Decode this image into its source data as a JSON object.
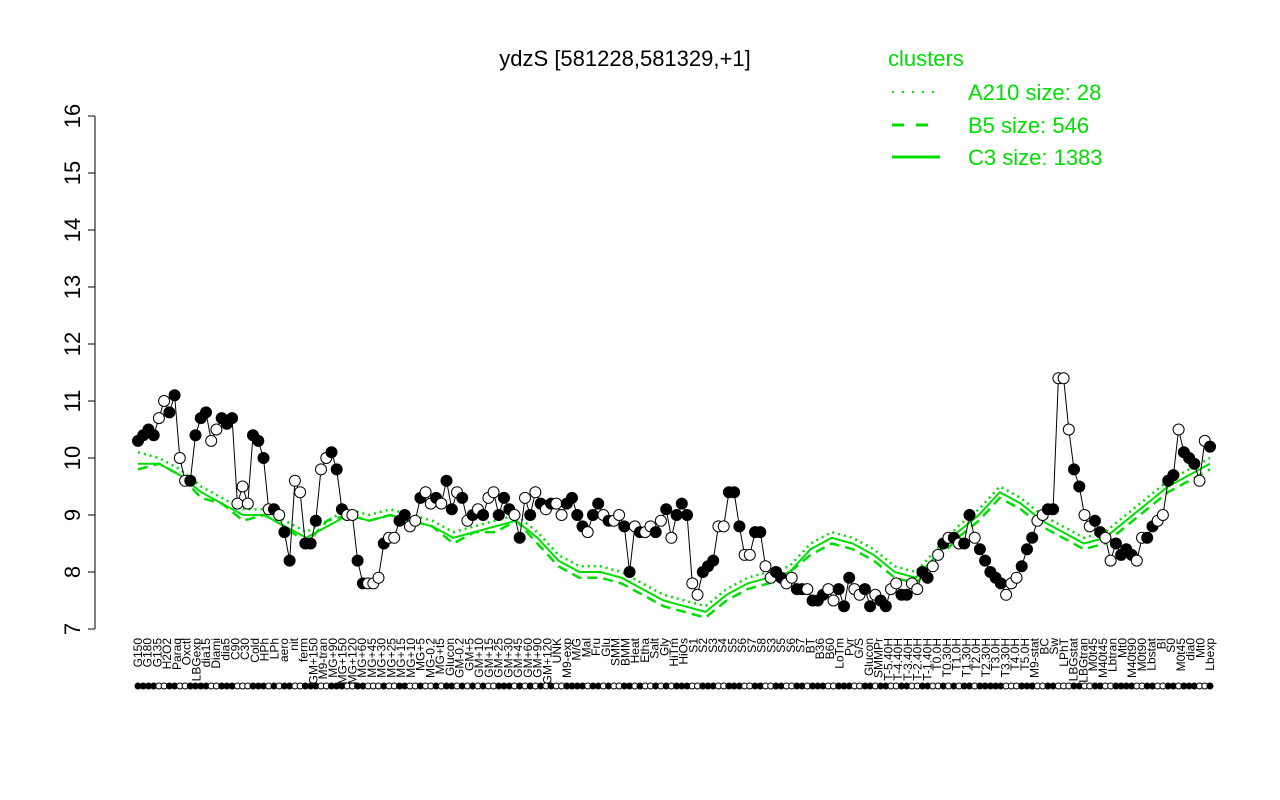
{
  "chart_data": {
    "type": "line",
    "title": "ydzS [581228,581329,+1]",
    "xlabel": "",
    "ylabel": "",
    "ylim": [
      7,
      16
    ],
    "yticks": [
      7,
      8,
      9,
      10,
      11,
      12,
      13,
      14,
      15,
      16
    ],
    "grid": false,
    "legend": {
      "title": "clusters",
      "placement": "top-right",
      "color": "#00dd00",
      "entries": [
        {
          "label": "A210 size: 28",
          "style": "dotted"
        },
        {
          "label": "B5 size: 546",
          "style": "dashed"
        },
        {
          "label": "C3 size: 1383",
          "style": "solid"
        }
      ]
    },
    "line_color": "#00dd00",
    "x_tick_labels": [
      "G150",
      "G180",
      "G135",
      "H2O2",
      "Paraq",
      "Oxctl",
      "LBGexp",
      "dia15",
      "Diami",
      "dia5",
      "C90",
      "C30",
      "Cold",
      "HPh",
      "LPh",
      "aero",
      "nit",
      "ferm",
      "GM+150",
      "M9-tran",
      "MG+90",
      "MG+150",
      "MG+120",
      "MG+60",
      "MG+45",
      "MG+30",
      "MG+25",
      "MG+15",
      "MG+10",
      "MG+5",
      "MG-0.2",
      "MG+t5",
      "Glucon",
      "GM-0.2",
      "GM+5",
      "GM+10",
      "GM+15",
      "GM+25",
      "GM+30",
      "GM+45",
      "GM+60",
      "GM+90",
      "GM+120",
      "UNK",
      "M9-exp",
      "M/G",
      "Mal",
      "Fru",
      "Glu",
      "SMM",
      "BMM",
      "Heat",
      "Etha",
      "Salt",
      "Gly",
      "HiTm",
      "HiOs",
      "S1",
      "S2",
      "S3",
      "S4",
      "S5",
      "S6",
      "S7",
      "S8",
      "S3",
      "S5",
      "S6",
      "S7",
      "BT",
      "B36",
      "B60",
      "LoTm",
      "Pyr",
      "G/S",
      "Glucon",
      "SMMPr",
      "T-5.40H",
      "T-4.40H",
      "T-3.40H",
      "T-2.40H",
      "T-1.40H",
      "T0.0H",
      "T0.30H",
      "T1.0H",
      "T1.30H",
      "T2.0H",
      "T2.30H",
      "T3.0H",
      "T3.30H",
      "T4.0H",
      "T5.0H",
      "M9-stat",
      "BC",
      "Sw",
      "LPhT",
      "LBGstat",
      "LBGtran",
      "M0t45",
      "M40t45",
      "Lbtran",
      "Mt0",
      "M40t90",
      "M0t90",
      "Lbstat",
      "BI",
      "S0",
      "M0t45",
      "dia0",
      "Mt0",
      "Lbexp"
    ],
    "markers_legend": "white = A210, black = C3",
    "points": [
      [
        10.3,
        "b"
      ],
      [
        10.4,
        "b"
      ],
      [
        10.5,
        "b"
      ],
      [
        10.4,
        "b"
      ],
      [
        10.7,
        "w"
      ],
      [
        11.0,
        "w"
      ],
      [
        10.8,
        "b"
      ],
      [
        11.1,
        "b"
      ],
      [
        10.0,
        "w"
      ],
      [
        9.6,
        "w"
      ],
      [
        9.6,
        "b"
      ],
      [
        10.4,
        "b"
      ],
      [
        10.7,
        "b"
      ],
      [
        10.8,
        "b"
      ],
      [
        10.3,
        "w"
      ],
      [
        10.5,
        "w"
      ],
      [
        10.7,
        "b"
      ],
      [
        10.6,
        "b"
      ],
      [
        10.7,
        "b"
      ],
      [
        9.2,
        "w"
      ],
      [
        9.5,
        "w"
      ],
      [
        9.2,
        "w"
      ],
      [
        10.4,
        "b"
      ],
      [
        10.3,
        "b"
      ],
      [
        10.0,
        "b"
      ],
      [
        9.1,
        "w"
      ],
      [
        9.1,
        "b"
      ],
      [
        9.0,
        "w"
      ],
      [
        8.7,
        "b"
      ],
      [
        8.2,
        "b"
      ],
      [
        9.6,
        "w"
      ],
      [
        9.4,
        "w"
      ],
      [
        8.5,
        "b"
      ],
      [
        8.5,
        "b"
      ],
      [
        8.9,
        "b"
      ],
      [
        9.8,
        "w"
      ],
      [
        10.0,
        "w"
      ],
      [
        10.1,
        "b"
      ],
      [
        9.8,
        "b"
      ],
      [
        9.1,
        "b"
      ],
      [
        9.0,
        "w"
      ],
      [
        9.0,
        "w"
      ],
      [
        8.2,
        "b"
      ],
      [
        7.8,
        "b"
      ],
      [
        7.8,
        "w"
      ],
      [
        7.8,
        "w"
      ],
      [
        7.9,
        "w"
      ],
      [
        8.5,
        "b"
      ],
      [
        8.6,
        "w"
      ],
      [
        8.6,
        "w"
      ],
      [
        8.9,
        "b"
      ],
      [
        9.0,
        "b"
      ],
      [
        8.8,
        "w"
      ],
      [
        8.9,
        "w"
      ],
      [
        9.3,
        "b"
      ],
      [
        9.4,
        "w"
      ],
      [
        9.2,
        "w"
      ],
      [
        9.3,
        "b"
      ],
      [
        9.2,
        "w"
      ],
      [
        9.6,
        "b"
      ],
      [
        9.1,
        "b"
      ],
      [
        9.4,
        "w"
      ],
      [
        9.3,
        "b"
      ],
      [
        8.9,
        "w"
      ],
      [
        9.0,
        "b"
      ],
      [
        9.1,
        "w"
      ],
      [
        9.0,
        "b"
      ],
      [
        9.3,
        "w"
      ],
      [
        9.4,
        "w"
      ],
      [
        9.0,
        "b"
      ],
      [
        9.3,
        "b"
      ],
      [
        9.1,
        "b"
      ],
      [
        9.0,
        "w"
      ],
      [
        8.6,
        "b"
      ],
      [
        9.3,
        "w"
      ],
      [
        9.0,
        "b"
      ],
      [
        9.4,
        "w"
      ],
      [
        9.2,
        "b"
      ],
      [
        9.1,
        "w"
      ],
      [
        9.2,
        "b"
      ],
      [
        9.2,
        "w"
      ],
      [
        9.0,
        "w"
      ],
      [
        9.2,
        "b"
      ],
      [
        9.3,
        "b"
      ],
      [
        9.0,
        "b"
      ],
      [
        8.8,
        "b"
      ],
      [
        8.7,
        "w"
      ],
      [
        9.0,
        "b"
      ],
      [
        9.2,
        "b"
      ],
      [
        9.0,
        "w"
      ],
      [
        8.9,
        "b"
      ],
      [
        8.9,
        "w"
      ],
      [
        9.0,
        "w"
      ],
      [
        8.8,
        "b"
      ],
      [
        8.0,
        "b"
      ],
      [
        8.8,
        "w"
      ],
      [
        8.7,
        "b"
      ],
      [
        8.7,
        "w"
      ],
      [
        8.8,
        "w"
      ],
      [
        8.7,
        "b"
      ],
      [
        8.9,
        "w"
      ],
      [
        9.1,
        "b"
      ],
      [
        8.6,
        "w"
      ],
      [
        9.0,
        "b"
      ],
      [
        9.2,
        "b"
      ],
      [
        9.0,
        "b"
      ],
      [
        7.8,
        "w"
      ],
      [
        7.6,
        "w"
      ],
      [
        8.0,
        "b"
      ],
      [
        8.1,
        "b"
      ],
      [
        8.2,
        "b"
      ],
      [
        8.8,
        "w"
      ],
      [
        8.8,
        "w"
      ],
      [
        9.4,
        "b"
      ],
      [
        9.4,
        "b"
      ],
      [
        8.8,
        "b"
      ],
      [
        8.3,
        "w"
      ],
      [
        8.3,
        "w"
      ],
      [
        8.7,
        "b"
      ],
      [
        8.7,
        "b"
      ],
      [
        8.1,
        "w"
      ],
      [
        7.9,
        "w"
      ],
      [
        8.0,
        "b"
      ],
      [
        7.9,
        "b"
      ],
      [
        7.8,
        "w"
      ],
      [
        7.9,
        "w"
      ],
      [
        7.7,
        "b"
      ],
      [
        7.7,
        "b"
      ],
      [
        7.7,
        "w"
      ],
      [
        7.5,
        "b"
      ],
      [
        7.5,
        "b"
      ],
      [
        7.6,
        "b"
      ],
      [
        7.7,
        "w"
      ],
      [
        7.5,
        "w"
      ],
      [
        7.7,
        "b"
      ],
      [
        7.4,
        "b"
      ],
      [
        7.9,
        "b"
      ],
      [
        7.7,
        "w"
      ],
      [
        7.6,
        "w"
      ],
      [
        7.7,
        "b"
      ],
      [
        7.4,
        "b"
      ],
      [
        7.6,
        "w"
      ],
      [
        7.5,
        "b"
      ],
      [
        7.4,
        "b"
      ],
      [
        7.7,
        "w"
      ],
      [
        7.8,
        "w"
      ],
      [
        7.6,
        "b"
      ],
      [
        7.6,
        "b"
      ],
      [
        7.8,
        "w"
      ],
      [
        7.7,
        "w"
      ],
      [
        8.0,
        "b"
      ],
      [
        7.9,
        "b"
      ],
      [
        8.1,
        "w"
      ],
      [
        8.3,
        "w"
      ],
      [
        8.5,
        "b"
      ],
      [
        8.6,
        "w"
      ],
      [
        8.6,
        "b"
      ],
      [
        8.5,
        "w"
      ],
      [
        8.5,
        "b"
      ],
      [
        9.0,
        "b"
      ],
      [
        8.6,
        "w"
      ],
      [
        8.4,
        "b"
      ],
      [
        8.2,
        "b"
      ],
      [
        8.0,
        "b"
      ],
      [
        7.9,
        "b"
      ],
      [
        7.8,
        "b"
      ],
      [
        7.6,
        "w"
      ],
      [
        7.8,
        "w"
      ],
      [
        7.9,
        "w"
      ],
      [
        8.1,
        "b"
      ],
      [
        8.4,
        "b"
      ],
      [
        8.6,
        "b"
      ],
      [
        8.9,
        "w"
      ],
      [
        9.0,
        "w"
      ],
      [
        9.1,
        "b"
      ],
      [
        9.1,
        "b"
      ],
      [
        11.4,
        "w"
      ],
      [
        11.4,
        "w"
      ],
      [
        10.5,
        "w"
      ],
      [
        9.8,
        "b"
      ],
      [
        9.5,
        "b"
      ],
      [
        9.0,
        "w"
      ],
      [
        8.8,
        "w"
      ],
      [
        8.9,
        "b"
      ],
      [
        8.7,
        "b"
      ],
      [
        8.6,
        "w"
      ],
      [
        8.2,
        "w"
      ],
      [
        8.5,
        "b"
      ],
      [
        8.3,
        "b"
      ],
      [
        8.4,
        "b"
      ],
      [
        8.3,
        "b"
      ],
      [
        8.2,
        "w"
      ],
      [
        8.6,
        "w"
      ],
      [
        8.6,
        "b"
      ],
      [
        8.8,
        "b"
      ],
      [
        8.9,
        "w"
      ],
      [
        9.0,
        "w"
      ],
      [
        9.6,
        "b"
      ],
      [
        9.7,
        "b"
      ],
      [
        10.5,
        "w"
      ],
      [
        10.1,
        "b"
      ],
      [
        10.0,
        "b"
      ],
      [
        9.9,
        "b"
      ],
      [
        9.6,
        "w"
      ],
      [
        10.3,
        "w"
      ],
      [
        10.2,
        "b"
      ]
    ],
    "series": [
      {
        "style": "solid",
        "values": [
          9.9,
          9.9,
          9.7,
          9.4,
          9.2,
          9.0,
          9.0,
          8.8,
          8.6,
          8.8,
          9.0,
          8.9,
          9.0,
          8.9,
          8.8,
          8.6,
          8.7,
          8.8,
          8.9,
          8.6,
          8.2,
          8.0,
          8.0,
          7.9,
          7.7,
          7.5,
          7.4,
          7.3,
          7.6,
          7.8,
          7.9,
          8.0,
          8.4,
          8.6,
          8.5,
          8.3,
          8.0,
          7.9,
          8.3,
          8.7,
          9.0,
          9.4,
          9.2,
          8.9,
          8.7,
          8.5,
          8.6,
          8.9,
          9.2,
          9.5,
          9.7,
          9.9
        ]
      },
      {
        "style": "dashed",
        "values": [
          9.8,
          9.9,
          9.7,
          9.3,
          9.2,
          8.9,
          9.0,
          8.8,
          8.5,
          8.9,
          9.0,
          8.9,
          9.0,
          8.9,
          8.8,
          8.5,
          8.7,
          8.7,
          8.9,
          8.5,
          8.1,
          7.9,
          7.9,
          7.8,
          7.6,
          7.4,
          7.3,
          7.2,
          7.5,
          7.7,
          7.8,
          8.0,
          8.3,
          8.5,
          8.4,
          8.2,
          7.9,
          7.8,
          8.2,
          8.6,
          8.9,
          9.3,
          9.1,
          8.8,
          8.6,
          8.4,
          8.5,
          8.8,
          9.1,
          9.4,
          9.6,
          9.8
        ]
      },
      {
        "style": "dotted",
        "values": [
          10.1,
          10.0,
          9.8,
          9.5,
          9.3,
          9.1,
          9.1,
          8.9,
          8.7,
          8.9,
          9.1,
          9.0,
          9.1,
          9.0,
          8.9,
          8.7,
          8.8,
          8.9,
          9.0,
          8.7,
          8.3,
          8.1,
          8.1,
          8.0,
          7.8,
          7.6,
          7.5,
          7.4,
          7.7,
          7.9,
          8.0,
          8.1,
          8.5,
          8.7,
          8.6,
          8.4,
          8.1,
          8.0,
          8.4,
          8.8,
          9.1,
          9.5,
          9.3,
          9.0,
          8.8,
          8.6,
          8.7,
          9.0,
          9.3,
          9.6,
          9.8,
          10.0
        ]
      }
    ]
  }
}
